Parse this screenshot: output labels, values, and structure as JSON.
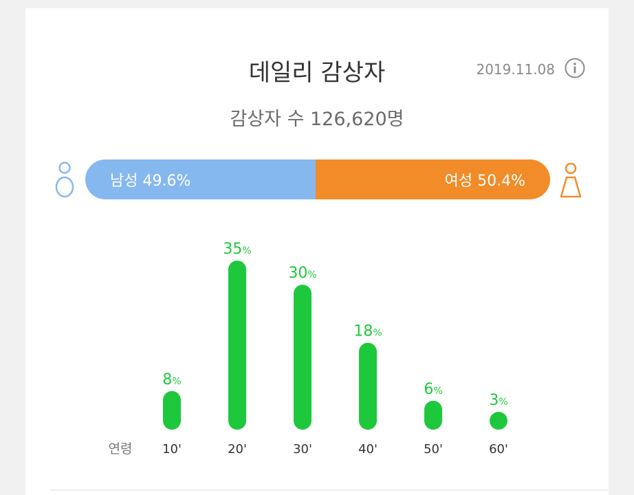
{
  "header": {
    "title": "데일리 감상자",
    "date": "2019.11.08",
    "info_icon": "info-icon"
  },
  "summary": {
    "viewers_label": "감상자 수 126,620명"
  },
  "gender": {
    "male_label": "남성 49.6%",
    "male_pct": 49.6,
    "female_label": "여성 50.4%",
    "female_pct": 50.4,
    "male_color": "#86b8f0",
    "female_color": "#f28c28",
    "male_icon": "male-person-icon",
    "female_icon": "female-person-icon"
  },
  "chart_data": {
    "type": "bar",
    "title": "",
    "xlabel": "연령",
    "ylabel": "",
    "categories": [
      "10'",
      "20'",
      "30'",
      "40'",
      "50'",
      "60'"
    ],
    "values": [
      8,
      35,
      30,
      18,
      6,
      3
    ],
    "unit": "%",
    "ylim": [
      0,
      35
    ],
    "grid": false,
    "bar_color": "#1ec83c"
  }
}
